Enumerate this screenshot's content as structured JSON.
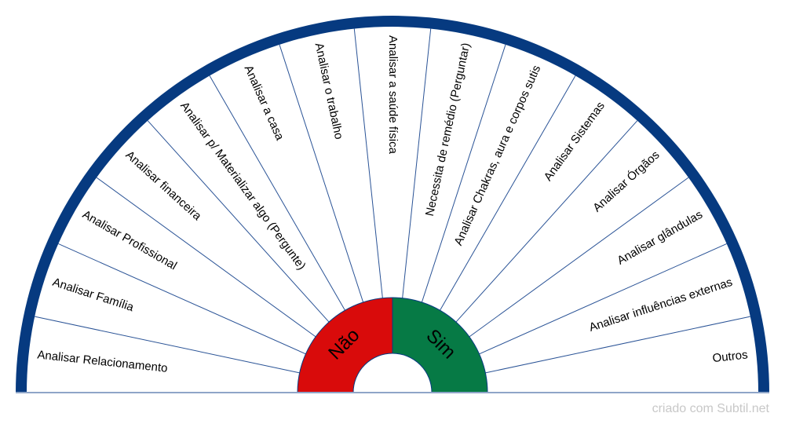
{
  "chart": {
    "sectors": [
      "Analisar Relacionamento",
      "Analisar Família",
      "Analisar Profissional",
      "Analisar financeira",
      "Analisar p/ Materializar algo (Pergunte)",
      "Analisar a casa",
      "Analisar o trabalho",
      "Analisar a saúde física",
      "Necessita de remédio (Perguntar)",
      "Analisar Chakras, aura e corpos sutis",
      "Analisar Sistemas",
      "Analisar Órgãos",
      "Analisar glândulas",
      "Analisar influências externas",
      "Outros"
    ],
    "no_label": "Não",
    "yes_label": "Sim"
  },
  "colors": {
    "border": "#063a80",
    "divider": "#2a5396",
    "no": "#d90b0b",
    "yes": "#067a45",
    "baseline": "#8fa5c8"
  },
  "watermark": "criado com Subtil.net"
}
